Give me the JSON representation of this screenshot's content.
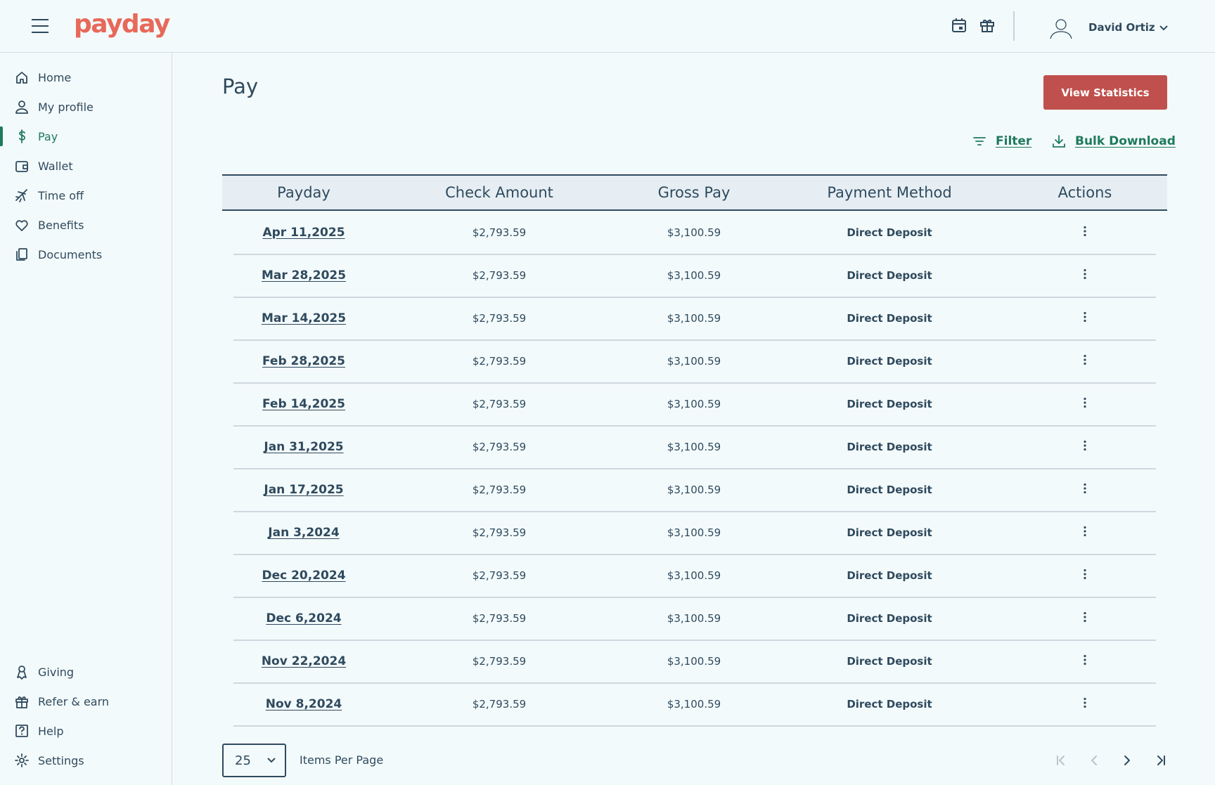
{
  "header": {
    "logo": "payday",
    "user_name": "David Ortiz"
  },
  "nav": {
    "main": [
      "Home",
      "My profile",
      "Pay",
      "Wallet",
      "Time off",
      "Benefits",
      "Documents"
    ],
    "bottom": [
      "Giving",
      "Refer & earn",
      "Help",
      "Settings"
    ]
  },
  "page": {
    "title": "Pay",
    "primary_button": "View Statistics",
    "filter": "Filter",
    "bulk_download": "Bulk Download"
  },
  "table": {
    "columns": [
      "Payday",
      "Check Amount",
      "Gross Pay",
      "Payment Method",
      "Actions"
    ],
    "rows": [
      [
        "Apr 11,2025",
        "$2,793.59",
        "$3,100.59",
        "Direct Deposit"
      ],
      [
        "Mar 28,2025",
        "$2,793.59",
        "$3,100.59",
        "Direct Deposit"
      ],
      [
        "Mar 14,2025",
        "$2,793.59",
        "$3,100.59",
        "Direct Deposit"
      ],
      [
        "Feb 28,2025",
        "$2,793.59",
        "$3,100.59",
        "Direct Deposit"
      ],
      [
        "Feb 14,2025",
        "$2,793.59",
        "$3,100.59",
        "Direct Deposit"
      ],
      [
        "Jan 31,2025",
        "$2,793.59",
        "$3,100.59",
        "Direct Deposit"
      ],
      [
        "Jan 17,2025",
        "$2,793.59",
        "$3,100.59",
        "Direct Deposit"
      ],
      [
        "Jan 3,2024",
        "$2,793.59",
        "$3,100.59",
        "Direct Deposit"
      ],
      [
        "Dec 20,2024",
        "$2,793.59",
        "$3,100.59",
        "Direct Deposit"
      ],
      [
        "Dec 6,2024",
        "$2,793.59",
        "$3,100.59",
        "Direct Deposit"
      ],
      [
        "Nov 22,2024",
        "$2,793.59",
        "$3,100.59",
        "Direct Deposit"
      ],
      [
        "Nov 8,2024",
        "$2,793.59",
        "$3,100.59",
        "Direct Deposit"
      ]
    ]
  },
  "pagination": {
    "items_per_page": "25",
    "items_per_page_label": "Items Per Page"
  }
}
